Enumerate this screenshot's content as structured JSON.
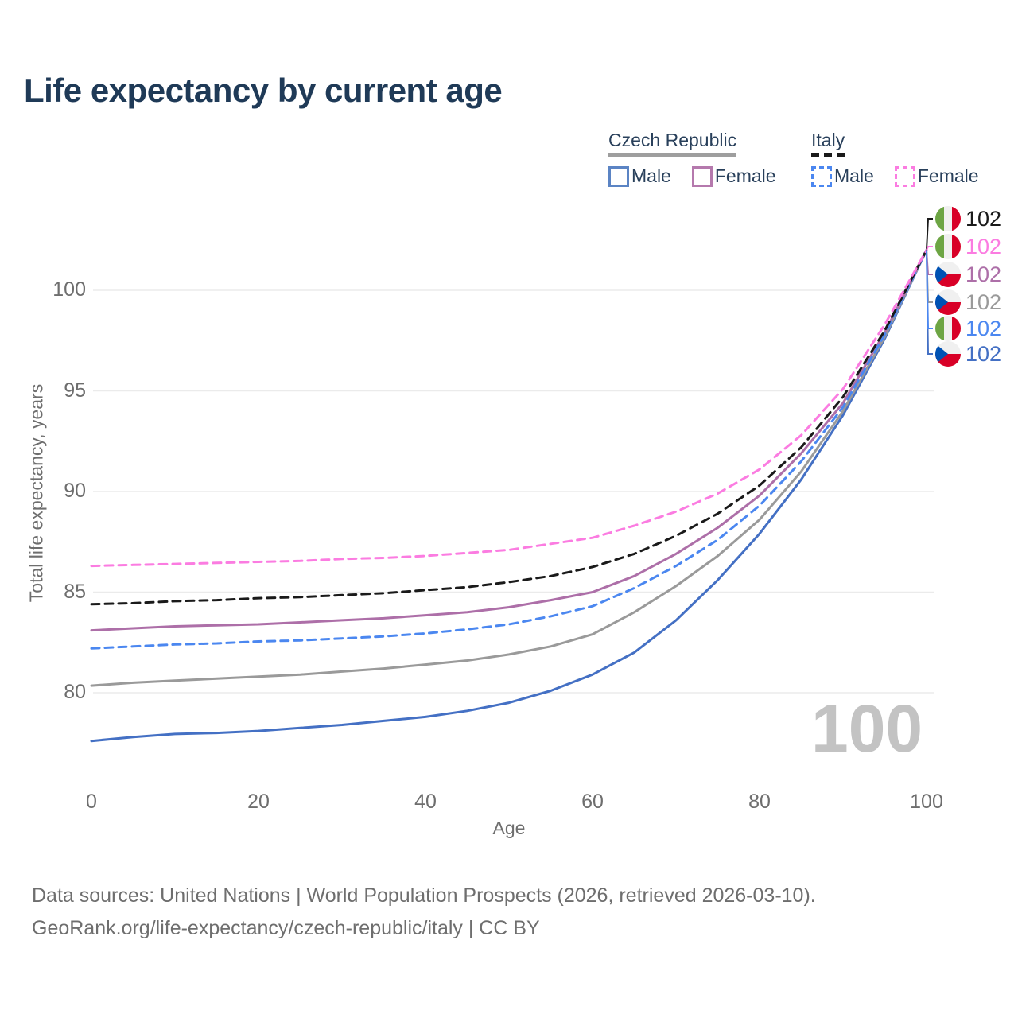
{
  "title": "Life expectancy by current age",
  "watermark": "100",
  "legend": {
    "groups": [
      {
        "id": "czech-republic",
        "title": "Czech Republic",
        "line_style": "solid",
        "underline_color": "#9e9e9e",
        "items": [
          {
            "label": "Male",
            "color": "#5b84c4",
            "box_style": "solid"
          },
          {
            "label": "Female",
            "color": "#b579ad",
            "box_style": "solid"
          }
        ]
      },
      {
        "id": "italy",
        "title": "Italy",
        "line_style": "dashed",
        "underline_color": "#1a1a1a",
        "items": [
          {
            "label": "Male",
            "color": "#4b87f0",
            "box_style": "dashed"
          },
          {
            "label": "Female",
            "color": "#fb7ce1",
            "box_style": "dashed"
          }
        ]
      }
    ]
  },
  "end_labels": [
    {
      "flag": "italy",
      "series": "Italy both sexes",
      "value": "102",
      "color": "#1a1a1a"
    },
    {
      "flag": "italy",
      "series": "Italy female",
      "value": "102",
      "color": "#fb7ce1"
    },
    {
      "flag": "czech-republic",
      "series": "Czech Republic female",
      "value": "102",
      "color": "#ad6fa8"
    },
    {
      "flag": "czech-republic",
      "series": "Czech Republic both sexes",
      "value": "102",
      "color": "#9a9a9a"
    },
    {
      "flag": "italy",
      "series": "Italy male",
      "value": "102",
      "color": "#4b87f0"
    },
    {
      "flag": "czech-republic",
      "series": "Czech Republic male",
      "value": "102",
      "color": "#4470c4"
    }
  ],
  "footer": {
    "line1": "Data sources: United Nations | World Population Prospects (2026, retrieved 2026-03-10).",
    "line2": "GeoRank.org/life-expectancy/czech-republic/italy | CC BY"
  },
  "chart_data": {
    "type": "line",
    "title": "Life expectancy by current age",
    "xlabel": "Age",
    "ylabel": "Total life expectancy, years",
    "xticks": [
      0,
      20,
      40,
      60,
      80,
      100
    ],
    "yticks": [
      80,
      85,
      90,
      95,
      100
    ],
    "xlim": [
      0,
      100
    ],
    "ylim": [
      77,
      103
    ],
    "grid": "horizontal",
    "legend_position": "top-right",
    "x": [
      0,
      5,
      10,
      15,
      20,
      25,
      30,
      35,
      40,
      45,
      50,
      55,
      60,
      65,
      70,
      75,
      80,
      85,
      90,
      95,
      100
    ],
    "series": [
      {
        "name": "Czech Republic Male",
        "country": "Czech Republic",
        "sex": "Male",
        "line_style": "solid",
        "color": "#4470c4",
        "end_label_row": 5,
        "values": [
          77.6,
          77.8,
          77.95,
          78.0,
          78.1,
          78.25,
          78.4,
          78.6,
          78.8,
          79.1,
          79.5,
          80.1,
          80.9,
          82.0,
          83.6,
          85.6,
          87.9,
          90.6,
          93.8,
          97.6,
          102
        ]
      },
      {
        "name": "Czech Republic Both sexes",
        "country": "Czech Republic",
        "sex": "Both sexes",
        "line_style": "solid",
        "color": "#9a9a9a",
        "end_label_row": 3,
        "values": [
          80.35,
          80.5,
          80.6,
          80.7,
          80.8,
          80.9,
          81.05,
          81.2,
          81.4,
          81.6,
          81.9,
          82.3,
          82.9,
          84.0,
          85.3,
          86.8,
          88.6,
          91.0,
          94.0,
          97.7,
          102
        ]
      },
      {
        "name": "Czech Republic Female",
        "country": "Czech Republic",
        "sex": "Female",
        "line_style": "solid",
        "color": "#ad6fa8",
        "end_label_row": 2,
        "values": [
          83.1,
          83.2,
          83.3,
          83.35,
          83.4,
          83.5,
          83.6,
          83.7,
          83.85,
          84.0,
          84.25,
          84.6,
          85.0,
          85.8,
          86.9,
          88.2,
          89.8,
          91.9,
          94.4,
          97.9,
          102
        ]
      },
      {
        "name": "Italy Male",
        "country": "Italy",
        "sex": "Male",
        "line_style": "dashed",
        "color": "#4b87f0",
        "end_label_row": 4,
        "values": [
          82.2,
          82.3,
          82.4,
          82.45,
          82.55,
          82.6,
          82.7,
          82.8,
          82.95,
          83.15,
          83.4,
          83.8,
          84.3,
          85.2,
          86.3,
          87.6,
          89.3,
          91.5,
          94.2,
          97.8,
          102
        ]
      },
      {
        "name": "Italy Both sexes",
        "country": "Italy",
        "sex": "Both sexes",
        "line_style": "dashed",
        "color": "#1a1a1a",
        "end_label_row": 0,
        "values": [
          84.4,
          84.45,
          84.55,
          84.6,
          84.7,
          84.75,
          84.85,
          84.95,
          85.1,
          85.25,
          85.5,
          85.8,
          86.25,
          86.9,
          87.8,
          88.9,
          90.3,
          92.2,
          94.7,
          98.0,
          102
        ]
      },
      {
        "name": "Italy Female",
        "country": "Italy",
        "sex": "Female",
        "line_style": "dashed",
        "color": "#fb7ce1",
        "end_label_row": 1,
        "values": [
          86.3,
          86.35,
          86.4,
          86.45,
          86.5,
          86.55,
          86.65,
          86.7,
          86.8,
          86.95,
          87.1,
          87.4,
          87.7,
          88.3,
          89.0,
          89.9,
          91.1,
          92.8,
          95.1,
          98.3,
          102
        ]
      }
    ]
  }
}
